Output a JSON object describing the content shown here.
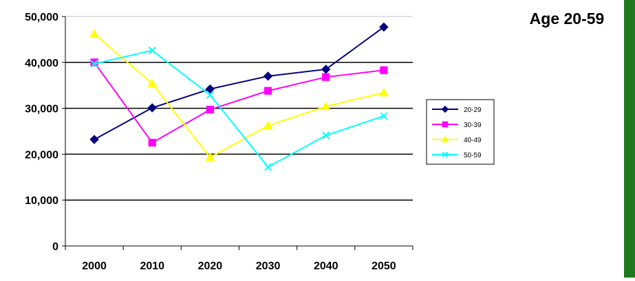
{
  "chart_data": {
    "type": "line",
    "title": "Age 20-59",
    "xlabel": "",
    "ylabel": "",
    "categories": [
      "2000",
      "2010",
      "2020",
      "2030",
      "2040",
      "2050"
    ],
    "ylim": [
      0,
      50000
    ],
    "yticks": [
      "0",
      "10,000",
      "20,000",
      "30,000",
      "40,000",
      "50,000"
    ],
    "grid": true,
    "legend": "right",
    "series": [
      {
        "name": "20-29",
        "color": "#000080",
        "marker": "diamond",
        "values": [
          23200,
          30100,
          34200,
          37000,
          38500,
          47700
        ]
      },
      {
        "name": "30-39",
        "color": "#ff00ff",
        "marker": "square",
        "values": [
          40000,
          22500,
          29700,
          33800,
          36800,
          38300
        ]
      },
      {
        "name": "40-49",
        "color": "#ffff00",
        "marker": "triangle",
        "values": [
          46200,
          35400,
          19300,
          26200,
          30400,
          33400
        ]
      },
      {
        "name": "50-59",
        "color": "#00ffff",
        "marker": "x",
        "values": [
          39700,
          42600,
          32900,
          17200,
          24100,
          28300
        ]
      }
    ]
  }
}
